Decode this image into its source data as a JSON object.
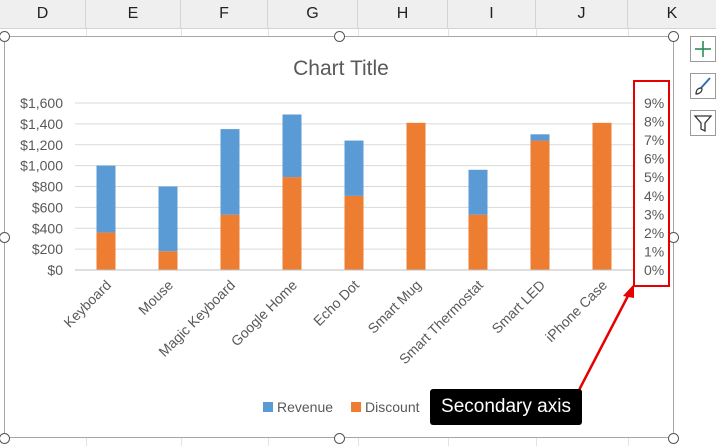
{
  "columns": [
    "D",
    "E",
    "F",
    "G",
    "H",
    "I",
    "J",
    "K"
  ],
  "chart_data": {
    "type": "bar",
    "stacked": true,
    "title": "Chart Title",
    "categories": [
      "Keyboard",
      "Mouse",
      "Magic Keyboard",
      "Google Home",
      "Echo Dot",
      "Smart Mug",
      "Smart Thermostat",
      "Smart LED",
      "iPhone Case"
    ],
    "series": [
      {
        "name": "Revenue",
        "values": [
          640,
          620,
          820,
          600,
          530,
          0,
          430,
          60,
          0
        ],
        "color": "#5b9bd5"
      },
      {
        "name": "Discount",
        "values": [
          360,
          180,
          530,
          890,
          710,
          1410,
          530,
          1240,
          1410
        ],
        "color": "#ed7d31"
      }
    ],
    "ylim": [
      0,
      1600
    ],
    "yticks": [
      "$0",
      "$200",
      "$400",
      "$600",
      "$800",
      "$1,000",
      "$1,200",
      "$1,400",
      "$1,600"
    ],
    "y2ticks": [
      "0%",
      "1%",
      "2%",
      "3%",
      "4%",
      "5%",
      "6%",
      "7%",
      "8%",
      "9%"
    ],
    "legend_position": "bottom",
    "grid": true
  },
  "annotation": {
    "label": "Secondary axis",
    "highlight_color": "#e60000"
  },
  "toolbar": {
    "icons": [
      "plus-icon",
      "brush-icon",
      "filter-icon"
    ]
  }
}
